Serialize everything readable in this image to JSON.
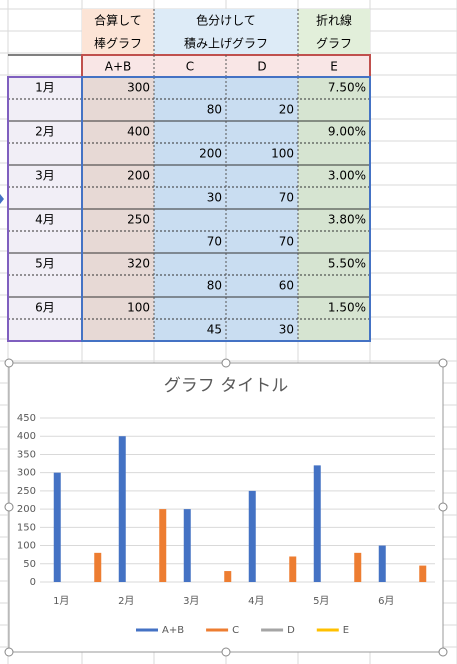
{
  "sheet": {
    "headers": [
      {
        "lines": [
          "合算して",
          "棒グラフ"
        ]
      },
      {
        "lines": [
          "色分けして",
          "積み上げグラフ"
        ]
      },
      {
        "lines": [
          "折れ線",
          "グラフ"
        ]
      }
    ],
    "columns": [
      "A+B",
      "C",
      "D",
      "E"
    ],
    "rows": [
      [
        "1月",
        "300",
        null,
        null,
        "7.50%"
      ],
      [
        null,
        null,
        "80",
        "20",
        null
      ],
      [
        "2月",
        "400",
        null,
        null,
        "9.00%"
      ],
      [
        null,
        null,
        "200",
        "100",
        null
      ],
      [
        "3月",
        "200",
        null,
        null,
        "3.00%"
      ],
      [
        null,
        null,
        "30",
        "70",
        null
      ],
      [
        "4月",
        "250",
        null,
        null,
        "3.80%"
      ],
      [
        null,
        null,
        "70",
        "70",
        null
      ],
      [
        "5月",
        "320",
        null,
        null,
        "5.50%"
      ],
      [
        null,
        null,
        "80",
        "60",
        null
      ],
      [
        "6月",
        "100",
        null,
        null,
        "1.50%"
      ],
      [
        null,
        null,
        "45",
        "30",
        null
      ]
    ]
  },
  "chart_data": {
    "type": "bar",
    "title": "グラフ タイトル",
    "categories": [
      "1月",
      null,
      "2月",
      null,
      "3月",
      null,
      "4月",
      null,
      "5月",
      null,
      "6月",
      null
    ],
    "series": [
      {
        "name": "A+B",
        "color": "#4472c4",
        "values": [
          300,
          null,
          400,
          null,
          200,
          null,
          250,
          null,
          320,
          null,
          100,
          null
        ]
      },
      {
        "name": "C",
        "color": "#ed7d31",
        "values": [
          null,
          80,
          null,
          200,
          null,
          30,
          null,
          70,
          null,
          80,
          null,
          45
        ]
      },
      {
        "name": "D",
        "color": "#a5a5a5",
        "values": [
          null,
          null,
          null,
          null,
          null,
          null,
          null,
          null,
          null,
          null,
          null,
          null
        ]
      },
      {
        "name": "E",
        "color": "#ffc000",
        "values": [
          null,
          null,
          null,
          null,
          null,
          null,
          null,
          null,
          null,
          null,
          null,
          null
        ]
      }
    ],
    "ylim": [
      0,
      450
    ],
    "yticks": [
      0,
      50,
      100,
      150,
      200,
      250,
      300,
      350,
      400,
      450
    ],
    "grid": true,
    "legend": "bottom"
  }
}
